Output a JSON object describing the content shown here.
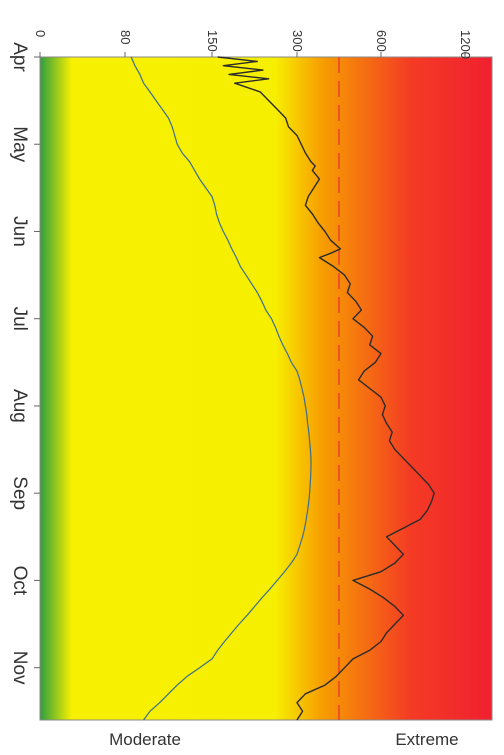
{
  "chart_data": {
    "type": "line",
    "orientation": "rotated-90-clockwise",
    "x_axis": {
      "label": "",
      "tick_labels": [
        "Apr",
        "May",
        "Jun",
        "Jul",
        "Aug",
        "Sep",
        "Oct",
        "Nov"
      ],
      "tick_values": [
        0,
        1,
        2,
        3,
        4,
        5,
        6,
        7
      ],
      "range": [
        0,
        7.6
      ]
    },
    "y_axis": {
      "label": "",
      "tick_labels": [
        "0",
        "80",
        "150",
        "300",
        "600",
        "1200"
      ],
      "tick_values": [
        0,
        80,
        150,
        300,
        600,
        1200
      ],
      "scale": "nonlinear-index",
      "range": [
        0,
        1350
      ]
    },
    "background_gradient": {
      "direction": "along-value-axis",
      "colors": [
        "#2e9e3e",
        "#f7f000",
        "#f7ef00",
        "#f7a000",
        "#f43b24",
        "#f02030"
      ],
      "low_label": "Moderate",
      "high_label": "Extreme"
    },
    "reference_line": {
      "value": 450,
      "color": "#e8452c",
      "style": "dashed"
    },
    "series": [
      {
        "color": "#3a6e8c",
        "points": [
          [
            0.0,
            85
          ],
          [
            0.1,
            88
          ],
          [
            0.2,
            92
          ],
          [
            0.3,
            95
          ],
          [
            0.4,
            100
          ],
          [
            0.5,
            105
          ],
          [
            0.6,
            110
          ],
          [
            0.7,
            115
          ],
          [
            0.8,
            118
          ],
          [
            0.9,
            120
          ],
          [
            1.0,
            122
          ],
          [
            1.1,
            126
          ],
          [
            1.2,
            132
          ],
          [
            1.3,
            136
          ],
          [
            1.4,
            140
          ],
          [
            1.5,
            145
          ],
          [
            1.6,
            150
          ],
          [
            1.7,
            155
          ],
          [
            1.8,
            158
          ],
          [
            1.9,
            163
          ],
          [
            2.0,
            170
          ],
          [
            2.1,
            178
          ],
          [
            2.2,
            185
          ],
          [
            2.3,
            193
          ],
          [
            2.4,
            200
          ],
          [
            2.5,
            210
          ],
          [
            2.6,
            220
          ],
          [
            2.7,
            230
          ],
          [
            2.8,
            238
          ],
          [
            2.9,
            245
          ],
          [
            3.0,
            255
          ],
          [
            3.1,
            262
          ],
          [
            3.2,
            268
          ],
          [
            3.3,
            275
          ],
          [
            3.4,
            283
          ],
          [
            3.5,
            290
          ],
          [
            3.6,
            300
          ],
          [
            3.7,
            310
          ],
          [
            3.8,
            318
          ],
          [
            3.9,
            325
          ],
          [
            4.0,
            330
          ],
          [
            4.1,
            335
          ],
          [
            4.2,
            338
          ],
          [
            4.3,
            342
          ],
          [
            4.4,
            345
          ],
          [
            4.5,
            348
          ],
          [
            4.6,
            350
          ],
          [
            4.7,
            350
          ],
          [
            4.8,
            349
          ],
          [
            4.9,
            347
          ],
          [
            5.0,
            345
          ],
          [
            5.1,
            342
          ],
          [
            5.2,
            338
          ],
          [
            5.3,
            333
          ],
          [
            5.4,
            327
          ],
          [
            5.5,
            320
          ],
          [
            5.6,
            310
          ],
          [
            5.7,
            300
          ],
          [
            5.8,
            290
          ],
          [
            5.9,
            278
          ],
          [
            6.0,
            265
          ],
          [
            6.1,
            252
          ],
          [
            6.2,
            238
          ],
          [
            6.3,
            225
          ],
          [
            6.4,
            212
          ],
          [
            6.5,
            198
          ],
          [
            6.6,
            185
          ],
          [
            6.7,
            172
          ],
          [
            6.8,
            160
          ],
          [
            6.9,
            150
          ],
          [
            7.0,
            140
          ],
          [
            7.1,
            130
          ],
          [
            7.2,
            122
          ],
          [
            7.3,
            115
          ],
          [
            7.4,
            108
          ],
          [
            7.5,
            100
          ],
          [
            7.6,
            95
          ]
        ]
      },
      {
        "color": "#2b2b2b",
        "points": [
          [
            0.0,
            160
          ],
          [
            0.05,
            230
          ],
          [
            0.1,
            170
          ],
          [
            0.15,
            240
          ],
          [
            0.2,
            180
          ],
          [
            0.25,
            250
          ],
          [
            0.3,
            190
          ],
          [
            0.4,
            235
          ],
          [
            0.5,
            250
          ],
          [
            0.6,
            265
          ],
          [
            0.7,
            280
          ],
          [
            0.8,
            285
          ],
          [
            0.9,
            300
          ],
          [
            1.0,
            315
          ],
          [
            1.1,
            330
          ],
          [
            1.2,
            350
          ],
          [
            1.25,
            365
          ],
          [
            1.3,
            355
          ],
          [
            1.4,
            380
          ],
          [
            1.5,
            360
          ],
          [
            1.6,
            340
          ],
          [
            1.7,
            330
          ],
          [
            1.8,
            355
          ],
          [
            1.9,
            375
          ],
          [
            2.0,
            400
          ],
          [
            2.1,
            420
          ],
          [
            2.2,
            455
          ],
          [
            2.25,
            420
          ],
          [
            2.3,
            380
          ],
          [
            2.4,
            430
          ],
          [
            2.5,
            470
          ],
          [
            2.6,
            490
          ],
          [
            2.7,
            480
          ],
          [
            2.8,
            510
          ],
          [
            2.9,
            530
          ],
          [
            3.0,
            500
          ],
          [
            3.1,
            540
          ],
          [
            3.2,
            570
          ],
          [
            3.3,
            560
          ],
          [
            3.4,
            600
          ],
          [
            3.5,
            580
          ],
          [
            3.6,
            540
          ],
          [
            3.7,
            520
          ],
          [
            3.8,
            560
          ],
          [
            3.9,
            600
          ],
          [
            4.0,
            630
          ],
          [
            4.1,
            610
          ],
          [
            4.2,
            640
          ],
          [
            4.3,
            680
          ],
          [
            4.4,
            660
          ],
          [
            4.5,
            700
          ],
          [
            4.6,
            760
          ],
          [
            4.7,
            820
          ],
          [
            4.8,
            880
          ],
          [
            4.9,
            940
          ],
          [
            5.0,
            980
          ],
          [
            5.1,
            960
          ],
          [
            5.2,
            930
          ],
          [
            5.3,
            880
          ],
          [
            5.4,
            760
          ],
          [
            5.5,
            640
          ],
          [
            5.6,
            700
          ],
          [
            5.7,
            760
          ],
          [
            5.8,
            700
          ],
          [
            5.9,
            600
          ],
          [
            6.0,
            500
          ],
          [
            6.1,
            560
          ],
          [
            6.2,
            620
          ],
          [
            6.3,
            700
          ],
          [
            6.4,
            760
          ],
          [
            6.5,
            700
          ],
          [
            6.6,
            640
          ],
          [
            6.7,
            600
          ],
          [
            6.8,
            560
          ],
          [
            6.9,
            500
          ],
          [
            7.0,
            470
          ],
          [
            7.1,
            440
          ],
          [
            7.2,
            400
          ],
          [
            7.3,
            330
          ],
          [
            7.4,
            300
          ],
          [
            7.5,
            320
          ],
          [
            7.6,
            300
          ]
        ]
      }
    ]
  }
}
